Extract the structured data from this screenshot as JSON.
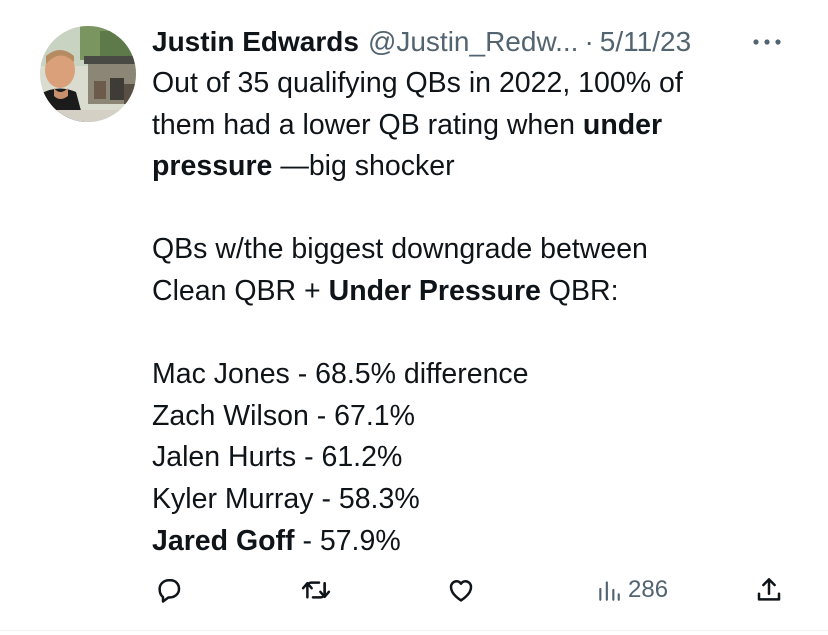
{
  "tweet": {
    "author_name": "Justin Edwards",
    "handle": "@Justin_Redw...",
    "separator": "·",
    "date": "5/11/23",
    "more_icon": "more-horizontal-icon",
    "body": {
      "p1": {
        "l1": "Out of 35 qualifying QBs in 2022, 100% of",
        "l2_a": "them had a lower QB rating when ",
        "l2_b": "under",
        "l3_a": "pressure",
        "l3_b": " —big shocker"
      },
      "p2": {
        "l1": "QBs w/the biggest downgrade between",
        "l2_a": "Clean QBR + ",
        "l2_b": "Under Pressure",
        "l2_c": " QBR:"
      },
      "list": [
        {
          "name": "Mac Jones",
          "value": " - 68.5% difference"
        },
        {
          "name": "Zach Wilson",
          "value": " - 67.1%"
        },
        {
          "name": "Jalen Hurts",
          "value": " - 61.2%"
        },
        {
          "name": "Kyler Murray",
          "value": " - 58.3%"
        },
        {
          "name": "Jared Goff",
          "value": " - 57.9%"
        }
      ]
    },
    "actions": {
      "reply_icon": "reply-icon",
      "retweet_icon": "retweet-icon",
      "like_icon": "like-icon",
      "views_icon": "views-icon",
      "views_count": "286",
      "share_icon": "share-icon"
    },
    "colors": {
      "text": "#0f1419",
      "secondary": "#536471",
      "background": "#ffffff"
    }
  }
}
